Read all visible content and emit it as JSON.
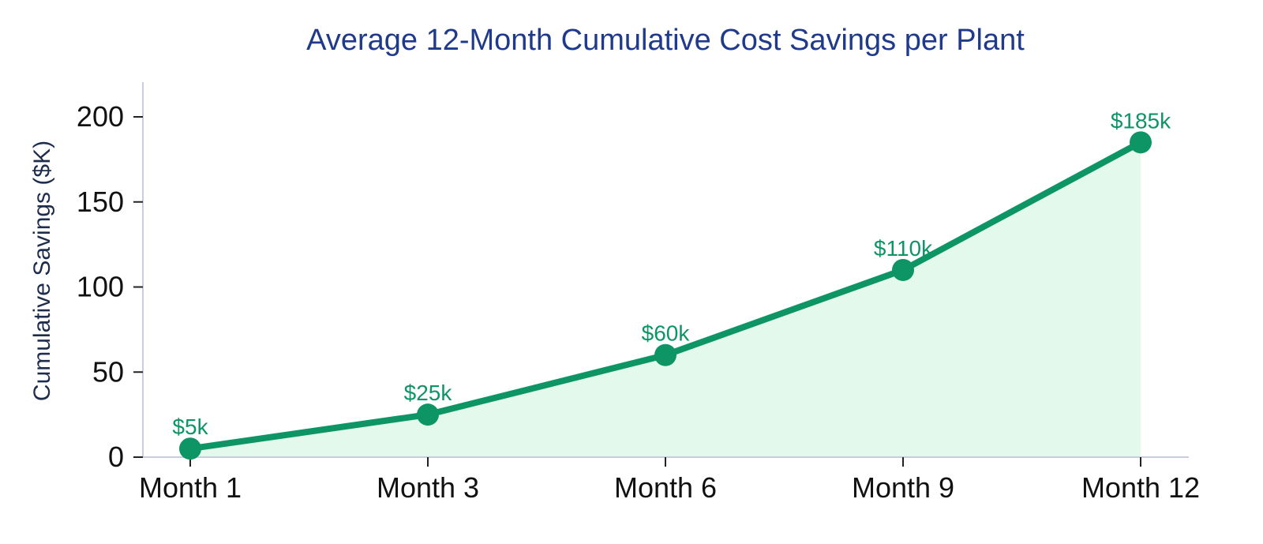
{
  "chart_data": {
    "type": "area",
    "title": "Average 12-Month Cumulative Cost Savings per Plant",
    "xlabel": "",
    "ylabel": "Cumulative Savings ($K)",
    "categories": [
      "Month 1",
      "Month 3",
      "Month 6",
      "Month 9",
      "Month 12"
    ],
    "series": [
      {
        "values": [
          5,
          25,
          60,
          110,
          185
        ],
        "data_labels": [
          "$5k",
          "$25k",
          "$60k",
          "$110k",
          "$185k"
        ]
      }
    ],
    "ylim": [
      0,
      220
    ],
    "yticks": [
      0,
      50,
      100,
      150,
      200
    ],
    "ytick_labels": [
      "0",
      "50",
      "100",
      "150",
      "200"
    ],
    "grid": false,
    "legend": "none",
    "colors": {
      "line": "#0e9566",
      "fill": "#e3f9ec",
      "title": "#1f3a8a",
      "axis": "#c9cede"
    }
  }
}
